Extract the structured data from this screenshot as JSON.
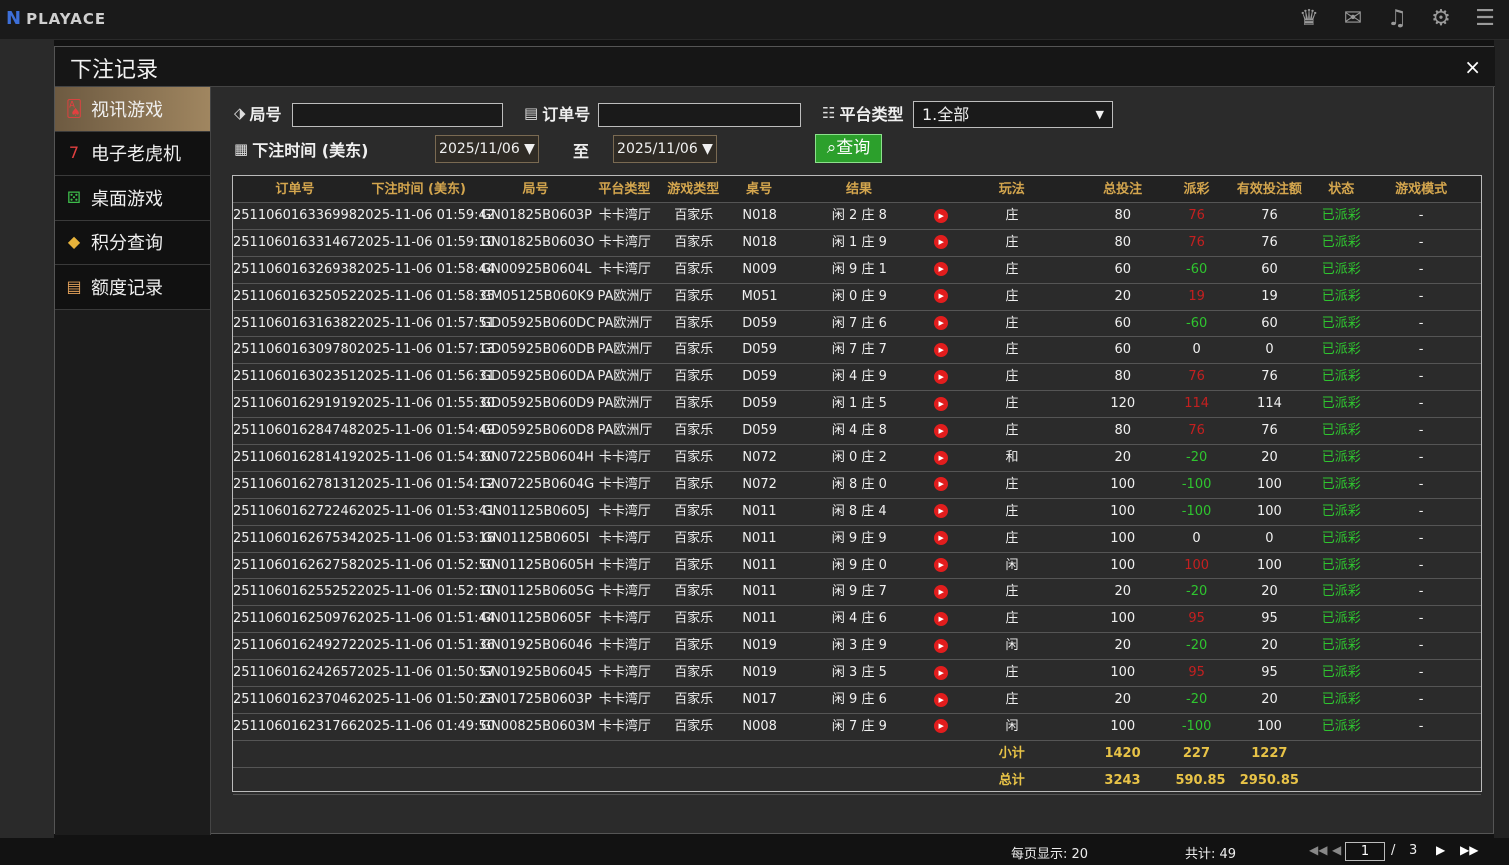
{
  "app": {
    "logo": "PLAYACE"
  },
  "dialog": {
    "title": "下注记录",
    "close": "×"
  },
  "sidebar": {
    "items": [
      {
        "label": "视讯游戏",
        "icon": "cards-icon"
      },
      {
        "label": "电子老虎机",
        "icon": "slot-icon"
      },
      {
        "label": "桌面游戏",
        "icon": "dice-icon"
      },
      {
        "label": "积分查询",
        "icon": "diamond-icon"
      },
      {
        "label": "额度记录",
        "icon": "document-icon"
      }
    ]
  },
  "filters": {
    "round_label": "局号",
    "round_value": "",
    "order_label": "订单号",
    "order_value": "",
    "platform_label": "平台类型",
    "platform_value": "1.全部",
    "time_label": "下注时间 (美东)",
    "date_from": "2025/11/06",
    "to_label": "至",
    "date_to": "2025/11/06",
    "query": "查询"
  },
  "table": {
    "headers": [
      "订单号",
      "下注时间 (美东)",
      "局号",
      "平台类型",
      "游戏类型",
      "桌号",
      "结果",
      "",
      "玩法",
      "总投注",
      "派彩",
      "有效投注额",
      "状态",
      "游戏模式"
    ],
    "rows": [
      [
        "251106016336998",
        "2025-11-06 01:59:42",
        "GN01825B0603P",
        "卡卡湾厅",
        "百家乐",
        "N018",
        "闲 2 庄 8",
        "庄",
        "80",
        "76",
        "76",
        "已派彩",
        "-",
        "pos"
      ],
      [
        "251106016331467",
        "2025-11-06 01:59:10",
        "GN01825B0603O",
        "卡卡湾厅",
        "百家乐",
        "N018",
        "闲 1 庄 9",
        "庄",
        "80",
        "76",
        "76",
        "已派彩",
        "-",
        "pos"
      ],
      [
        "251106016326938",
        "2025-11-06 01:58:44",
        "GN00925B0604L",
        "卡卡湾厅",
        "百家乐",
        "N009",
        "闲 9 庄 1",
        "庄",
        "60",
        "-60",
        "60",
        "已派彩",
        "-",
        "neg"
      ],
      [
        "251106016325052",
        "2025-11-06 01:58:35",
        "GM05125B060K9",
        "PA欧洲厅",
        "百家乐",
        "M051",
        "闲 0 庄 9",
        "庄",
        "20",
        "19",
        "19",
        "已派彩",
        "-",
        "pos"
      ],
      [
        "251106016316382",
        "2025-11-06 01:57:51",
        "GD05925B060DC",
        "PA欧洲厅",
        "百家乐",
        "D059",
        "闲 7 庄 6",
        "庄",
        "60",
        "-60",
        "60",
        "已派彩",
        "-",
        "neg"
      ],
      [
        "251106016309780",
        "2025-11-06 01:57:13",
        "GD05925B060DB",
        "PA欧洲厅",
        "百家乐",
        "D059",
        "闲 7 庄 7",
        "庄",
        "60",
        "0",
        "0",
        "已派彩",
        "-",
        "zero"
      ],
      [
        "251106016302351",
        "2025-11-06 01:56:31",
        "GD05925B060DA",
        "PA欧洲厅",
        "百家乐",
        "D059",
        "闲 4 庄 9",
        "庄",
        "80",
        "76",
        "76",
        "已派彩",
        "-",
        "pos"
      ],
      [
        "251106016291919",
        "2025-11-06 01:55:30",
        "GD05925B060D9",
        "PA欧洲厅",
        "百家乐",
        "D059",
        "闲 1 庄 5",
        "庄",
        "120",
        "114",
        "114",
        "已派彩",
        "-",
        "pos"
      ],
      [
        "251106016284748",
        "2025-11-06 01:54:49",
        "GD05925B060D8",
        "PA欧洲厅",
        "百家乐",
        "D059",
        "闲 4 庄 8",
        "庄",
        "80",
        "76",
        "76",
        "已派彩",
        "-",
        "pos"
      ],
      [
        "251106016281419",
        "2025-11-06 01:54:30",
        "GN07225B0604H",
        "卡卡湾厅",
        "百家乐",
        "N072",
        "闲 0 庄 2",
        "和",
        "20",
        "-20",
        "20",
        "已派彩",
        "-",
        "neg"
      ],
      [
        "251106016278131",
        "2025-11-06 01:54:12",
        "GN07225B0604G",
        "卡卡湾厅",
        "百家乐",
        "N072",
        "闲 8 庄 0",
        "庄",
        "100",
        "-100",
        "100",
        "已派彩",
        "-",
        "neg"
      ],
      [
        "251106016272246",
        "2025-11-06 01:53:41",
        "GN01125B0605J",
        "卡卡湾厅",
        "百家乐",
        "N011",
        "闲 8 庄 4",
        "庄",
        "100",
        "-100",
        "100",
        "已派彩",
        "-",
        "neg"
      ],
      [
        "251106016267534",
        "2025-11-06 01:53:16",
        "GN01125B0605I",
        "卡卡湾厅",
        "百家乐",
        "N011",
        "闲 9 庄 9",
        "庄",
        "100",
        "0",
        "0",
        "已派彩",
        "-",
        "zero"
      ],
      [
        "251106016262758",
        "2025-11-06 01:52:50",
        "GN01125B0605H",
        "卡卡湾厅",
        "百家乐",
        "N011",
        "闲 9 庄 0",
        "闲",
        "100",
        "100",
        "100",
        "已派彩",
        "-",
        "pos"
      ],
      [
        "251106016255252",
        "2025-11-06 01:52:10",
        "GN01125B0605G",
        "卡卡湾厅",
        "百家乐",
        "N011",
        "闲 9 庄 7",
        "庄",
        "20",
        "-20",
        "20",
        "已派彩",
        "-",
        "neg"
      ],
      [
        "251106016250976",
        "2025-11-06 01:51:44",
        "GN01125B0605F",
        "卡卡湾厅",
        "百家乐",
        "N011",
        "闲 4 庄 6",
        "庄",
        "100",
        "95",
        "95",
        "已派彩",
        "-",
        "pos"
      ],
      [
        "251106016249272",
        "2025-11-06 01:51:36",
        "GN01925B06046",
        "卡卡湾厅",
        "百家乐",
        "N019",
        "闲 3 庄 9",
        "闲",
        "20",
        "-20",
        "20",
        "已派彩",
        "-",
        "neg"
      ],
      [
        "251106016242657",
        "2025-11-06 01:50:57",
        "GN01925B06045",
        "卡卡湾厅",
        "百家乐",
        "N019",
        "闲 3 庄 5",
        "庄",
        "100",
        "95",
        "95",
        "已派彩",
        "-",
        "pos"
      ],
      [
        "251106016237046",
        "2025-11-06 01:50:23",
        "GN01725B0603P",
        "卡卡湾厅",
        "百家乐",
        "N017",
        "闲 9 庄 6",
        "庄",
        "20",
        "-20",
        "20",
        "已派彩",
        "-",
        "neg"
      ],
      [
        "251106016231766",
        "2025-11-06 01:49:50",
        "GN00825B0603M",
        "卡卡湾厅",
        "百家乐",
        "N008",
        "闲 7 庄 9",
        "闲",
        "100",
        "-100",
        "100",
        "已派彩",
        "-",
        "neg"
      ]
    ],
    "subtotal": {
      "label": "小计",
      "bet": "1420",
      "payout": "227",
      "valid": "1227"
    },
    "total": {
      "label": "总计",
      "bet": "3243",
      "payout": "590.85",
      "valid": "2950.85"
    }
  },
  "pager": {
    "per_page": "每页显示: 20",
    "total": "共计: 49",
    "page": "1",
    "sep": "/",
    "pages": "3"
  }
}
